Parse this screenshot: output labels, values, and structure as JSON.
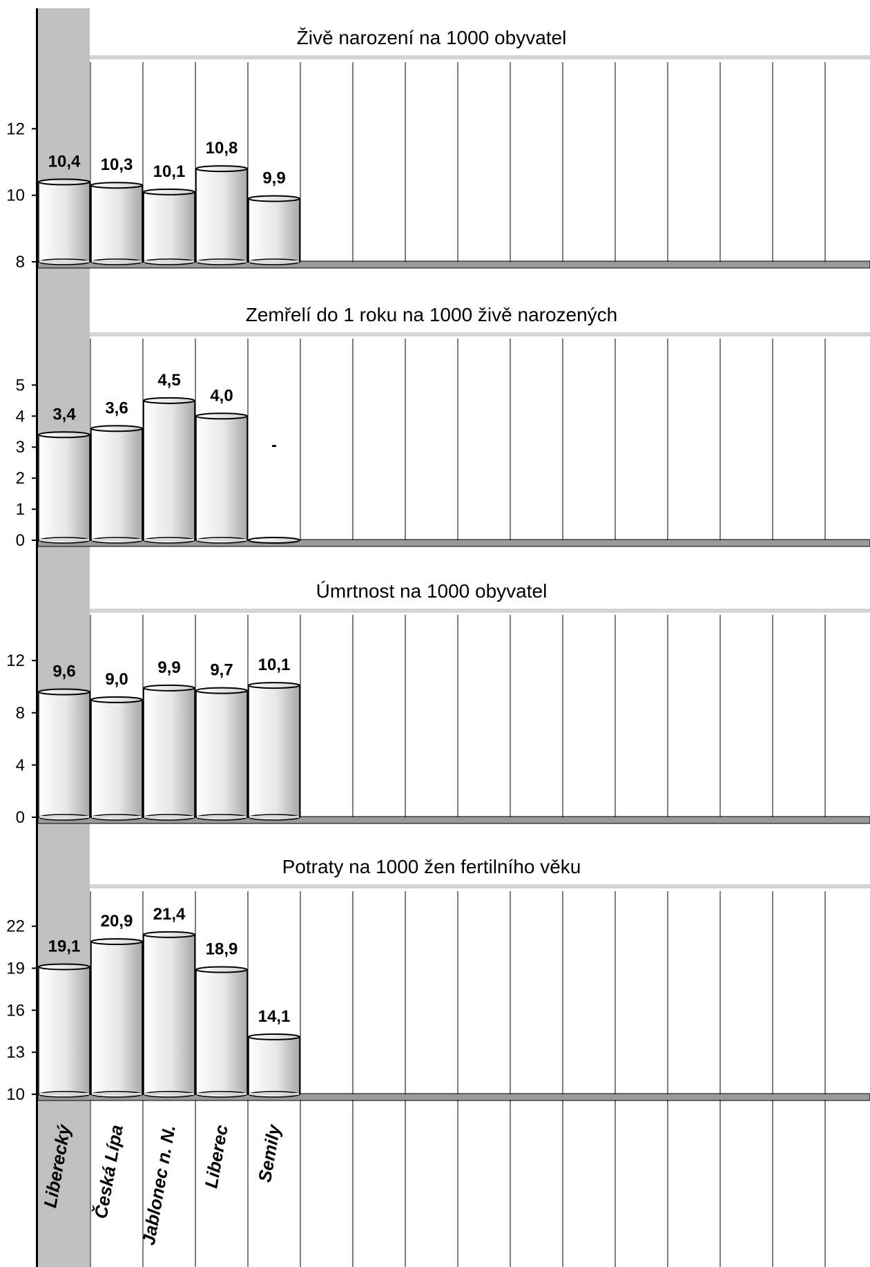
{
  "categories": [
    "Liberecký",
    "Česká Lípa",
    "Jablonec n. N.",
    "Liberec",
    "Semily"
  ],
  "chart_data": [
    {
      "type": "bar",
      "title": "Živě narození na 1000 obyvatel",
      "categories": [
        "Liberecký",
        "Česká Lípa",
        "Jablonec n. N.",
        "Liberec",
        "Semily"
      ],
      "values": [
        10.4,
        10.3,
        10.1,
        10.8,
        9.9
      ],
      "value_labels": [
        "10,4",
        "10,3",
        "10,1",
        "10,8",
        "9,9"
      ],
      "ylim": [
        8,
        14
      ],
      "yticks": [
        8,
        10,
        12
      ],
      "ytick_labels": [
        "8",
        "10",
        "12"
      ]
    },
    {
      "type": "bar",
      "title": "Zemřelí do 1 roku na 1000 živě narozených",
      "categories": [
        "Liberecký",
        "Česká Lípa",
        "Jablonec n. N.",
        "Liberec",
        "Semily"
      ],
      "values": [
        3.4,
        3.6,
        4.5,
        4.0,
        0
      ],
      "value_labels": [
        "3,4",
        "3,6",
        "4,5",
        "4,0",
        "-"
      ],
      "ylim": [
        0,
        6.5
      ],
      "yticks": [
        0,
        1,
        2,
        3,
        4,
        5
      ],
      "ytick_labels": [
        "0",
        "1",
        "2",
        "3",
        "4",
        "5"
      ]
    },
    {
      "type": "bar",
      "title": "Úmrtnost na 1000 obyvatel",
      "categories": [
        "Liberecký",
        "Česká Lípa",
        "Jablonec n. N.",
        "Liberec",
        "Semily"
      ],
      "values": [
        9.6,
        9.0,
        9.9,
        9.7,
        10.1
      ],
      "value_labels": [
        "9,6",
        "9,0",
        "9,9",
        "9,7",
        "10,1"
      ],
      "ylim": [
        0,
        15.5
      ],
      "yticks": [
        0,
        4,
        8,
        12
      ],
      "ytick_labels": [
        "0",
        "4",
        "8",
        "12"
      ]
    },
    {
      "type": "bar",
      "title": "Potraty na 1000 žen fertilního věku",
      "categories": [
        "Liberecký",
        "Česká Lípa",
        "Jablonec n. N.",
        "Liberec",
        "Semily"
      ],
      "values": [
        19.1,
        20.9,
        21.4,
        18.9,
        14.1
      ],
      "value_labels": [
        "19,1",
        "20,9",
        "21,4",
        "18,9",
        "14,1"
      ],
      "ylim": [
        10,
        24.5
      ],
      "yticks": [
        10,
        13,
        16,
        19,
        22
      ],
      "ytick_labels": [
        "10",
        "13",
        "16",
        "19",
        "22"
      ]
    }
  ],
  "colors": {
    "left_band": "#c0c0c0",
    "grid_line": "#000000",
    "floor": "#9a9a9a",
    "title_bar": "#d4d4d4",
    "bar_fill_light": "#ffffff",
    "bar_fill_dark": "#a8a8a8"
  }
}
